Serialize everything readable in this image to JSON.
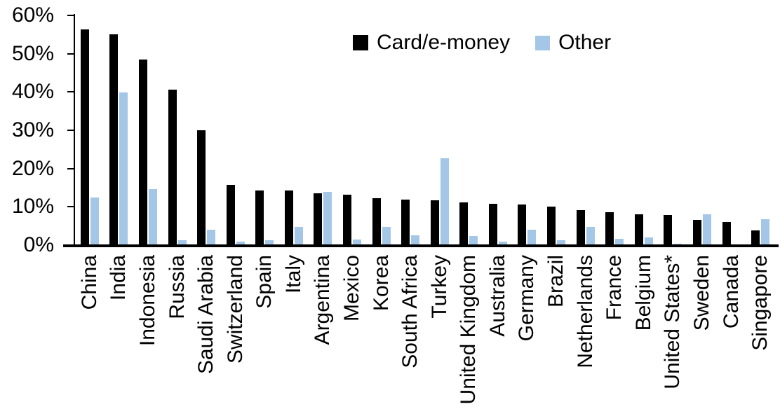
{
  "chart_data": {
    "type": "bar",
    "title": "",
    "xlabel": "",
    "ylabel": "",
    "ylim": [
      0,
      60
    ],
    "yticks": [
      0,
      10,
      20,
      30,
      40,
      50,
      60
    ],
    "ytick_suffix": "%",
    "grid": false,
    "legend_position": "top-center",
    "categories": [
      "China",
      "India",
      "Indonesia",
      "Russia",
      "Saudi Arabia",
      "Switzerland",
      "Spain",
      "Italy",
      "Argentina",
      "Mexico",
      "Korea",
      "South Africa",
      "Turkey",
      "United Kingdom",
      "Australia",
      "Germany",
      "Brazil",
      "Netherlands",
      "France",
      "Belgium",
      "United States*",
      "Sweden",
      "Canada",
      "Singapore"
    ],
    "series": [
      {
        "name": "Card/e-money",
        "color": "#000000",
        "values": [
          56.4,
          55.1,
          48.4,
          40.7,
          30.0,
          15.8,
          14.3,
          14.3,
          13.6,
          13.1,
          12.3,
          11.9,
          11.8,
          11.1,
          10.8,
          10.6,
          10.0,
          9.2,
          8.6,
          8.0,
          7.8,
          6.6,
          6.0,
          3.9
        ]
      },
      {
        "name": "Other",
        "color": "#A4C7E8",
        "values": [
          12.4,
          39.8,
          14.6,
          1.2,
          4.0,
          0.9,
          1.2,
          4.8,
          13.9,
          1.5,
          4.7,
          2.5,
          22.6,
          2.4,
          1.0,
          4.0,
          1.3,
          4.7,
          1.6,
          2.1,
          0.4,
          8.1,
          0,
          6.7
        ]
      }
    ]
  }
}
